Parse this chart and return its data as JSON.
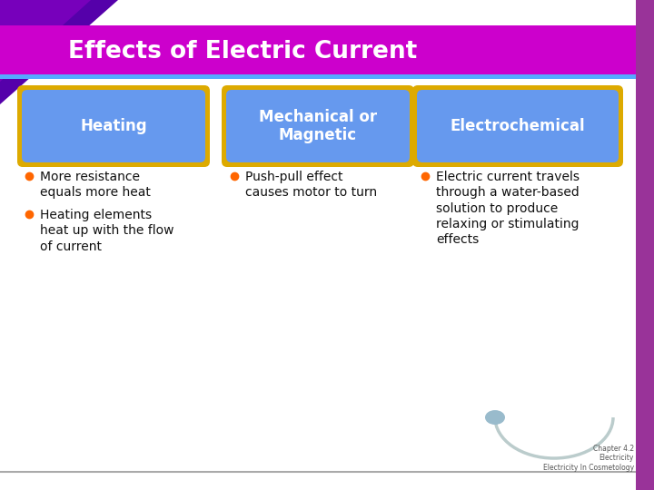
{
  "title": "Effects of Electric Current",
  "title_bg_color": "#CC00CC",
  "title_text_color": "#FFFFFF",
  "title_border_color": "#55AAFF",
  "background_color": "#FFFFFF",
  "left_triangle_color": "#5500AA",
  "box_fill_color": "#6699EE",
  "box_border_color": "#DDAA00",
  "box_text_color": "#FFFFFF",
  "boxes": [
    "Heating",
    "Mechanical or\nMagnetic",
    "Electrochemical"
  ],
  "bullet_color": "#FF6600",
  "bullet_text_color": "#111111",
  "col1_bullets": [
    "More resistance\nequals more heat",
    "Heating elements\nheat up with the flow\nof current"
  ],
  "col2_bullets": [
    "Push-pull effect\ncauses motor to turn"
  ],
  "col3_bullets": [
    "Electric current travels\nthrough a water-based\nsolution to produce\nrelaxing or stimulating\neffects"
  ],
  "footer_text": "Chapter 4.2\nElectricity\nElectricity In Cosmetology",
  "footer_color": "#555555",
  "right_bar_color": "#993399",
  "arc_color": "#BBCCCC",
  "ellipse_color": "#99BBCC"
}
